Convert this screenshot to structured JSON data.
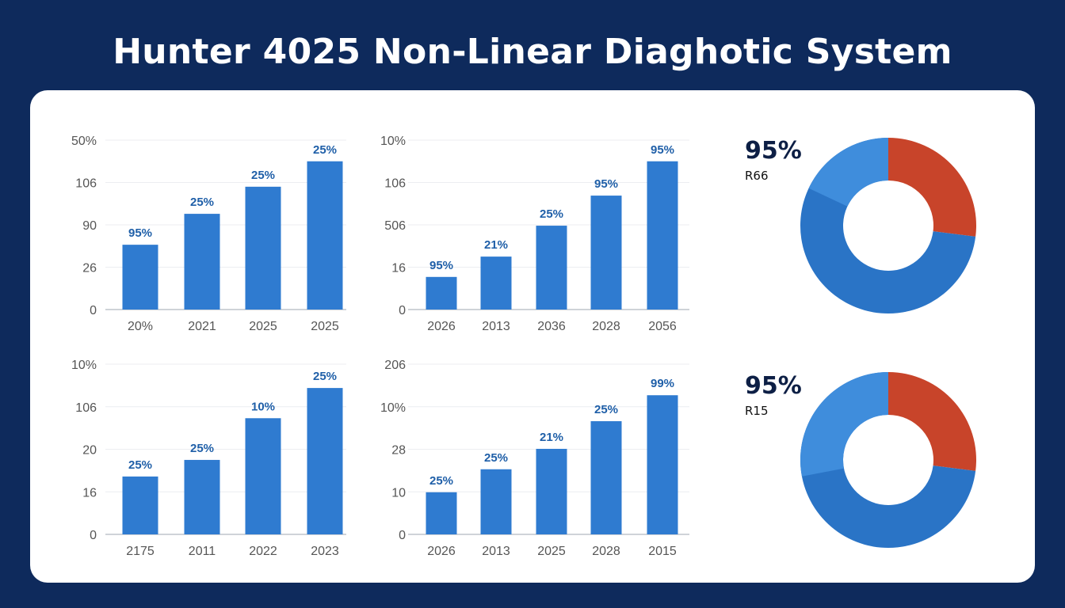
{
  "title": "Hunter 4025 Non-Linear Diaghotic System",
  "colors": {
    "background": "#0e2a5c",
    "bar": "#2f7bd0",
    "donut_main": "#2a74c6",
    "donut_light": "#3f8ddc",
    "donut_accent": "#c8442a",
    "label": "#1f5fa8"
  },
  "chart_data": [
    {
      "type": "bar",
      "yticks": [
        "0",
        "26",
        "90",
        "106",
        "50%"
      ],
      "ylim": [
        0,
        4
      ],
      "categories": [
        "20%",
        "2021",
        "2025",
        "2025"
      ],
      "values": [
        1.53,
        2.26,
        2.9,
        3.5
      ],
      "data_labels": [
        "95%",
        "25%",
        "25%",
        "25%"
      ]
    },
    {
      "type": "bar",
      "yticks": [
        "0",
        "16",
        "506",
        "106",
        "10%"
      ],
      "ylim": [
        0,
        4
      ],
      "categories": [
        "2026",
        "2013",
        "2036",
        "2028",
        "2056"
      ],
      "values": [
        0.77,
        1.25,
        1.98,
        2.69,
        3.5
      ],
      "data_labels": [
        "95%",
        "21%",
        "25%",
        "95%",
        "95%"
      ]
    },
    {
      "type": "bar",
      "yticks": [
        "0",
        "16",
        "20",
        "106",
        "10%"
      ],
      "ylim": [
        0,
        4
      ],
      "categories": [
        "2175",
        "2011",
        "2022",
        "2023"
      ],
      "values": [
        1.36,
        1.75,
        2.73,
        3.44
      ],
      "data_labels": [
        "25%",
        "25%",
        "10%",
        "25%"
      ]
    },
    {
      "type": "bar",
      "yticks": [
        "0",
        "10",
        "28",
        "10%",
        "206"
      ],
      "ylim": [
        0,
        4
      ],
      "categories": [
        "2026",
        "2013",
        "2025",
        "2028",
        "2015"
      ],
      "values": [
        0.99,
        1.53,
        2.01,
        2.66,
        3.27
      ],
      "data_labels": [
        "25%",
        "25%",
        "21%",
        "25%",
        "99%"
      ]
    },
    {
      "type": "pie",
      "donut": true,
      "headline": "95%",
      "label": "R66",
      "slices": [
        {
          "value": 27,
          "color": "#c8442a"
        },
        {
          "value": 73,
          "color": "#2a74c6"
        }
      ]
    },
    {
      "type": "pie",
      "donut": true,
      "headline": "95%",
      "label": "R15",
      "slices": [
        {
          "value": 27,
          "color": "#c8442a"
        },
        {
          "value": 73,
          "color": "#2a74c6"
        }
      ]
    }
  ]
}
